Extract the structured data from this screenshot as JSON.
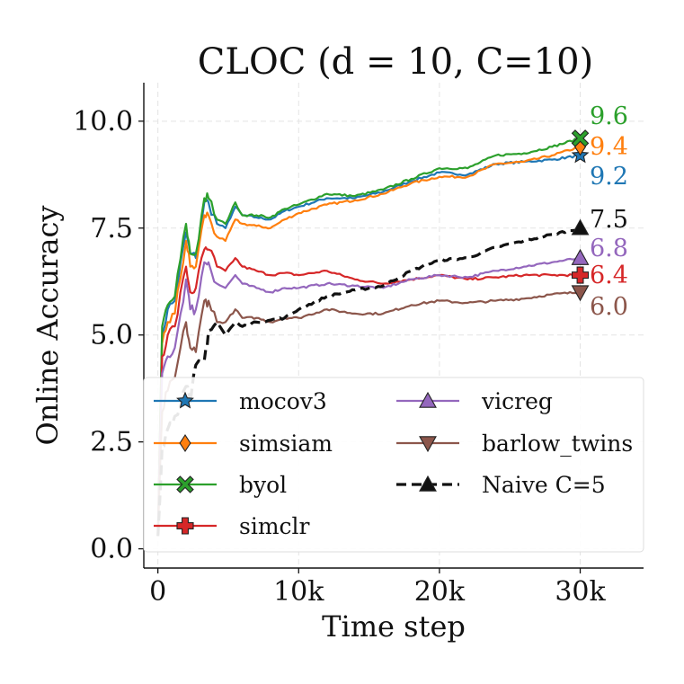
{
  "chart_data": {
    "type": "line",
    "title": "CLOC (d = 10, C=10)",
    "xlabel": "Time step",
    "ylabel": "Online Accuracy",
    "xlim": [
      -1000,
      34500
    ],
    "ylim": [
      -0.45,
      10.9
    ],
    "xticks": [
      0,
      10000,
      20000,
      30000
    ],
    "xtick_labels": [
      "0",
      "10k",
      "20k",
      "30k"
    ],
    "yticks": [
      0.0,
      2.5,
      5.0,
      7.5,
      10.0
    ],
    "ytick_labels": [
      "0.0",
      "2.5",
      "5.0",
      "7.5",
      "10.0"
    ],
    "grid": true,
    "legend_position": "bottom",
    "series": [
      {
        "name": "mocov3",
        "color": "#1f77b4",
        "marker": "star",
        "dashed": false,
        "end_label": "9.2",
        "final": 9.2,
        "x": [
          0,
          300,
          700,
          1200,
          2000,
          2300,
          2700,
          3300,
          3600,
          4200,
          4800,
          5500,
          6000,
          7000,
          8000,
          9000,
          10000,
          12000,
          14000,
          16000,
          18000,
          20000,
          22000,
          24000,
          26000,
          28000,
          30000
        ],
        "y": [
          0.3,
          5.0,
          5.6,
          5.8,
          7.4,
          6.9,
          6.8,
          8.1,
          8.1,
          7.6,
          7.5,
          8.0,
          7.8,
          7.75,
          7.7,
          7.9,
          8.0,
          8.2,
          8.2,
          8.35,
          8.6,
          8.8,
          8.75,
          9.0,
          9.05,
          9.1,
          9.2
        ]
      },
      {
        "name": "simsiam",
        "color": "#ff7f0e",
        "marker": "diamond",
        "dashed": false,
        "end_label": "9.4",
        "final": 9.4,
        "x": [
          0,
          300,
          700,
          1200,
          2000,
          2300,
          2700,
          3300,
          3600,
          4200,
          4800,
          5500,
          6000,
          7000,
          8000,
          9000,
          10000,
          12000,
          14000,
          16000,
          18000,
          20000,
          22000,
          24000,
          26000,
          28000,
          30000
        ],
        "y": [
          0.3,
          4.8,
          5.3,
          5.5,
          7.2,
          6.6,
          6.6,
          7.8,
          7.8,
          7.3,
          7.2,
          7.7,
          7.6,
          7.55,
          7.5,
          7.7,
          7.85,
          8.05,
          8.15,
          8.3,
          8.55,
          8.7,
          8.7,
          9.0,
          9.05,
          9.2,
          9.4
        ]
      },
      {
        "name": "byol",
        "color": "#2ca02c",
        "marker": "x",
        "dashed": false,
        "end_label": "9.6",
        "final": 9.6,
        "x": [
          0,
          300,
          700,
          1200,
          2000,
          2300,
          2700,
          3300,
          3600,
          4200,
          4800,
          5500,
          6000,
          7000,
          8000,
          9000,
          10000,
          12000,
          14000,
          16000,
          18000,
          20000,
          22000,
          24000,
          26000,
          28000,
          30000
        ],
        "y": [
          0.3,
          5.2,
          5.7,
          5.9,
          7.6,
          6.9,
          6.9,
          8.2,
          8.2,
          7.7,
          7.6,
          8.1,
          7.8,
          7.8,
          7.75,
          7.95,
          8.05,
          8.3,
          8.25,
          8.4,
          8.65,
          8.9,
          8.9,
          9.2,
          9.25,
          9.4,
          9.6
        ]
      },
      {
        "name": "simclr",
        "color": "#d62728",
        "marker": "plus",
        "dashed": false,
        "end_label": "6.4",
        "final": 6.4,
        "x": [
          0,
          300,
          700,
          1200,
          2000,
          2300,
          2700,
          3300,
          3600,
          4200,
          4800,
          5500,
          6000,
          7000,
          8000,
          9000,
          10000,
          12000,
          14000,
          16000,
          18000,
          20000,
          22000,
          24000,
          26000,
          28000,
          30000
        ],
        "y": [
          0.3,
          4.5,
          5.0,
          5.2,
          6.6,
          6.0,
          6.1,
          7.0,
          7.0,
          6.6,
          6.5,
          6.8,
          6.6,
          6.5,
          6.4,
          6.45,
          6.4,
          6.5,
          6.3,
          6.2,
          6.3,
          6.4,
          6.3,
          6.35,
          6.4,
          6.4,
          6.4
        ]
      },
      {
        "name": "vicreg",
        "color": "#9467bd",
        "marker": "triangle-up",
        "dashed": false,
        "end_label": "6.8",
        "final": 6.8,
        "x": [
          0,
          300,
          700,
          1200,
          2000,
          2300,
          2700,
          3300,
          3600,
          4200,
          4800,
          5500,
          6000,
          7000,
          8000,
          9000,
          10000,
          12000,
          14000,
          16000,
          18000,
          20000,
          22000,
          24000,
          26000,
          28000,
          30000
        ],
        "y": [
          0.3,
          4.1,
          4.5,
          4.7,
          6.3,
          5.6,
          5.6,
          6.7,
          6.7,
          6.2,
          6.1,
          6.4,
          6.2,
          6.1,
          6.0,
          6.1,
          6.1,
          6.2,
          6.15,
          6.1,
          6.3,
          6.4,
          6.35,
          6.5,
          6.6,
          6.7,
          6.8
        ]
      },
      {
        "name": "barlow_twins",
        "color": "#8c564b",
        "marker": "triangle-down",
        "dashed": false,
        "end_label": "6.0",
        "final": 6.0,
        "x": [
          0,
          300,
          700,
          1200,
          2000,
          2300,
          2700,
          3300,
          3600,
          4200,
          4800,
          5500,
          6000,
          7000,
          8000,
          9000,
          10000,
          12000,
          14000,
          16000,
          18000,
          20000,
          22000,
          24000,
          26000,
          28000,
          30000
        ],
        "y": [
          0.3,
          3.2,
          3.7,
          4.0,
          5.3,
          4.7,
          4.6,
          5.8,
          5.8,
          5.3,
          5.3,
          5.6,
          5.4,
          5.4,
          5.3,
          5.4,
          5.4,
          5.6,
          5.5,
          5.5,
          5.7,
          5.8,
          5.75,
          5.8,
          5.85,
          5.95,
          6.0
        ]
      },
      {
        "name": "Naive C=5",
        "color": "#111111",
        "marker": "triangle-up",
        "dashed": true,
        "end_label": "7.5",
        "final": 7.5,
        "x": [
          0,
          300,
          700,
          1200,
          2000,
          2300,
          2700,
          3300,
          3600,
          4200,
          4800,
          5500,
          6000,
          7000,
          8000,
          9000,
          10000,
          12000,
          14000,
          16000,
          18000,
          20000,
          22000,
          24000,
          26000,
          28000,
          30000
        ],
        "y": [
          0.3,
          2.4,
          2.8,
          3.1,
          3.8,
          3.4,
          4.3,
          4.4,
          5.1,
          5.3,
          5.0,
          5.3,
          5.2,
          5.3,
          5.35,
          5.4,
          5.6,
          5.9,
          6.05,
          6.15,
          6.5,
          6.75,
          6.8,
          7.05,
          7.2,
          7.35,
          7.5
        ]
      }
    ]
  }
}
